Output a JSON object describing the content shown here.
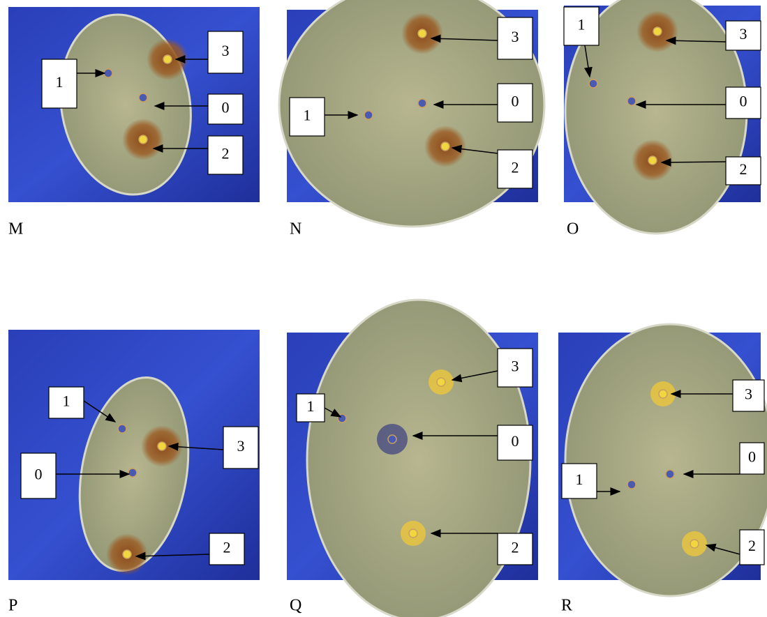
{
  "panels": [
    {
      "letter": "M",
      "labels": [
        "1",
        "3",
        "0",
        "2"
      ]
    },
    {
      "letter": "N",
      "labels": [
        "3",
        "0",
        "1",
        "2"
      ]
    },
    {
      "letter": "O",
      "labels": [
        "1",
        "3",
        "0",
        "2"
      ]
    },
    {
      "letter": "P",
      "labels": [
        "1",
        "3",
        "0",
        "2"
      ]
    },
    {
      "letter": "Q",
      "labels": [
        "1",
        "3",
        "0",
        "2"
      ]
    },
    {
      "letter": "R",
      "labels": [
        "3",
        "0",
        "1",
        "2"
      ]
    }
  ]
}
